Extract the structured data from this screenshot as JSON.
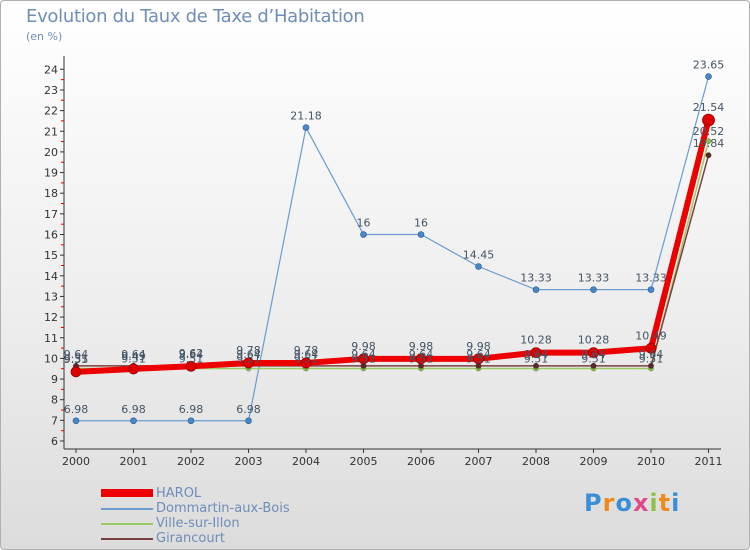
{
  "header": {
    "title": "Evolution du Taux de Taxe d’Habitation",
    "unit": "(en %)"
  },
  "logo": {
    "text": "Proxiti"
  },
  "chart_data": {
    "type": "line",
    "title": "Evolution du Taux de Taxe d’Habitation",
    "ylabel": "(en %)",
    "xlabel": "",
    "ylim": [
      6,
      24
    ],
    "grid": false,
    "legend_position": "bottom-left",
    "x": [
      "2000",
      "2001",
      "2002",
      "2003",
      "2004",
      "2005",
      "2006",
      "2007",
      "2008",
      "2009",
      "2010",
      "2011"
    ],
    "y_ticks": [
      "6",
      "7",
      "8",
      "9",
      "10",
      "11",
      "12",
      "13",
      "14",
      "15",
      "16",
      "17",
      "18",
      "19",
      "20",
      "21",
      "22",
      "23",
      "24"
    ],
    "series": [
      {
        "name": "Dommartin-aux-Bois",
        "color": "#6b9bd0",
        "values": [
          6.98,
          6.98,
          6.98,
          6.98,
          21.18,
          16,
          16,
          14.45,
          13.33,
          13.33,
          13.33,
          23.65
        ],
        "labels": [
          "6.98",
          "6.98",
          "6.98",
          "6.98",
          "21.18",
          "16",
          "16",
          "14.45",
          "13.33",
          "13.33",
          "13.33",
          "23.65"
        ]
      },
      {
        "name": "Ville-sur-Illon",
        "color": "#99cc66",
        "values": [
          9.51,
          9.51,
          9.51,
          9.51,
          9.51,
          9.51,
          9.51,
          9.51,
          9.51,
          9.51,
          9.51,
          20.52
        ],
        "labels": [
          "9.51",
          "9.51",
          "9.51",
          "9.51",
          "9.51",
          "9.51",
          "9.51",
          "9.51",
          "9.51",
          "9.51",
          "9.51",
          "20.52"
        ]
      },
      {
        "name": "Girancourt",
        "color": "#7a4040",
        "values": [
          9.64,
          9.64,
          9.64,
          9.64,
          9.64,
          9.64,
          9.64,
          9.64,
          9.64,
          9.64,
          9.64,
          19.84
        ],
        "labels": [
          "9.64",
          "9.64",
          "9.64",
          "9.64",
          "9.64",
          "9.64",
          "9.64",
          "9.64",
          "9.64",
          "9.64",
          "9.64",
          "19.84"
        ]
      },
      {
        "name": "HAROL",
        "color": "#ee0000",
        "values": [
          9.35,
          9.49,
          9.62,
          9.78,
          9.78,
          9.98,
          9.98,
          9.98,
          10.28,
          10.28,
          10.49,
          21.54
        ],
        "labels": [
          "9.35",
          "9.49",
          "9.62",
          "9.78",
          "9.78",
          "9.98",
          "9.98",
          "9.98",
          "10.28",
          "10.28",
          "10.49",
          "21.54"
        ]
      }
    ]
  }
}
